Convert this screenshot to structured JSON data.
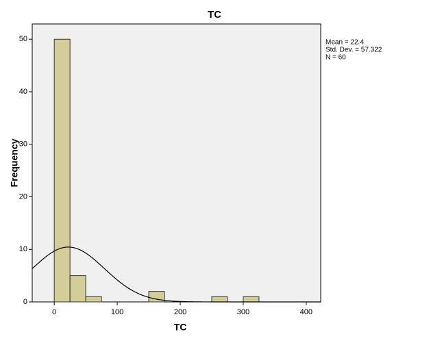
{
  "chart_data": {
    "type": "histogram",
    "title": "TC",
    "x_label": "TC",
    "y_label": "Frequency",
    "bins": [
      0,
      25,
      50,
      75,
      100,
      125,
      150,
      175,
      200,
      225,
      250,
      275,
      300,
      325
    ],
    "values": [
      50,
      5,
      1,
      0,
      0,
      0,
      2,
      0,
      0,
      0,
      1,
      0,
      1
    ],
    "color": "#d3ce97",
    "xlim": [
      -35,
      423
    ],
    "ylim": [
      0,
      52.9
    ],
    "xticks": [
      0,
      100,
      200,
      300,
      400
    ],
    "yticks": [
      0,
      10,
      20,
      30,
      40,
      50
    ],
    "normal_curve": {
      "mean": 22.4,
      "std_dev": 57.322,
      "n": 60
    },
    "annotations": [
      "Mean = 22.4",
      "Std. Dev. = 57.322",
      "N = 60"
    ]
  }
}
